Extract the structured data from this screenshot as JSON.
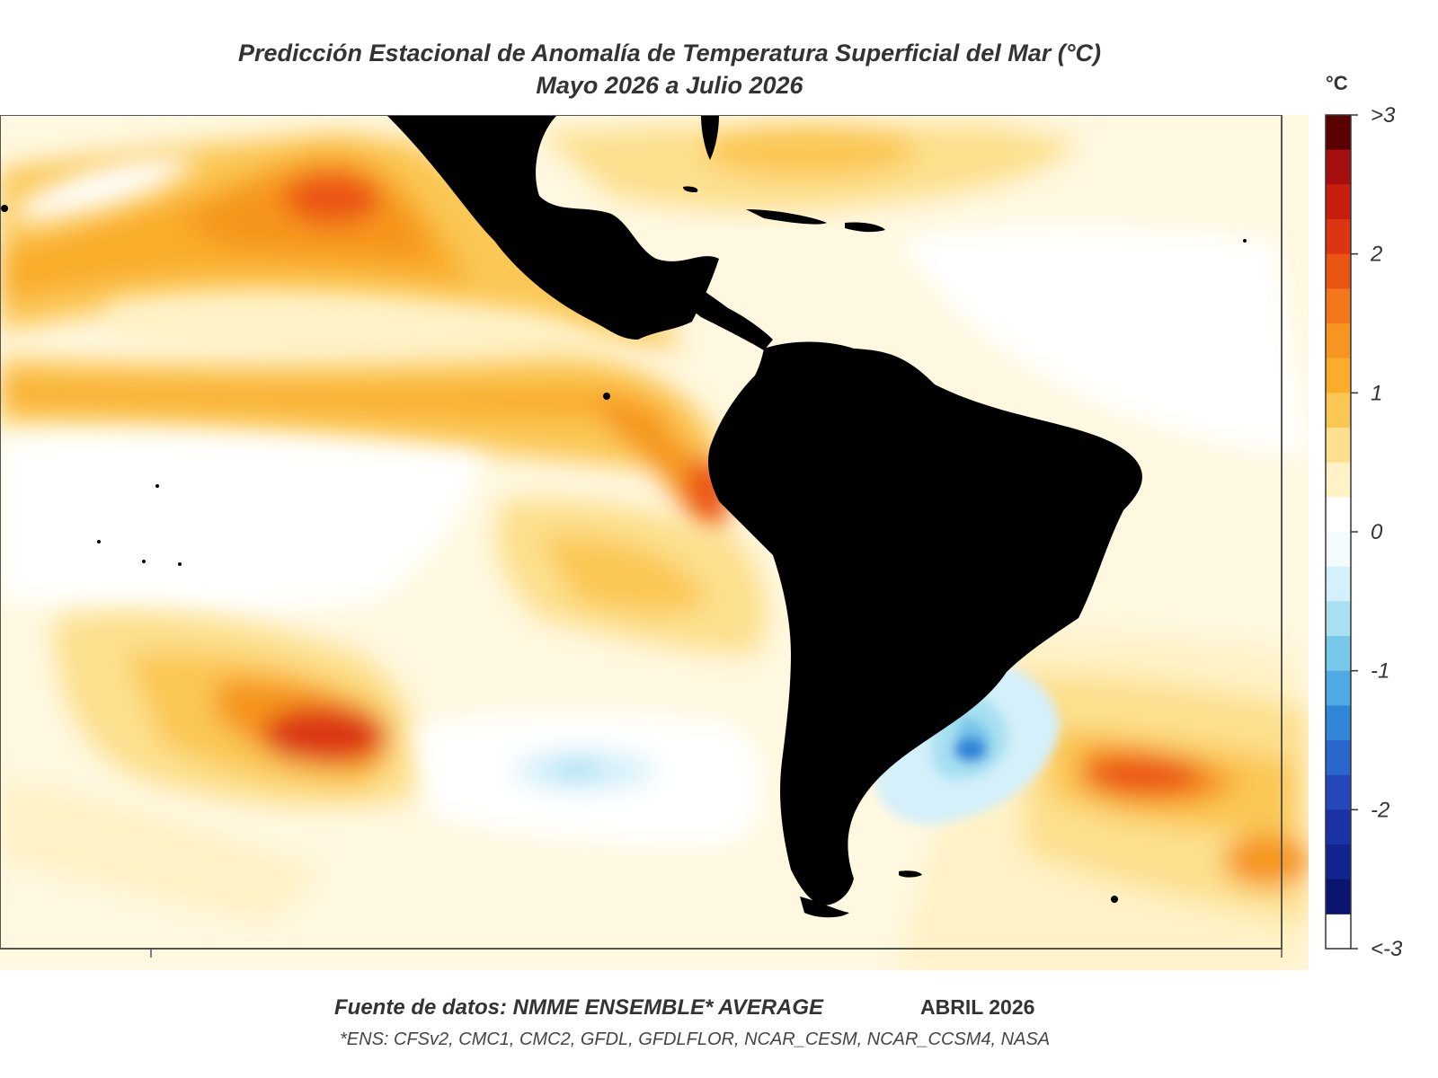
{
  "title": {
    "line1": "Predicción Estacional de Anomalía de Temperatura Superficial del Mar (°C)",
    "line2": "Mayo 2026 a Julio 2026"
  },
  "colorbar": {
    "unit": "°C",
    "ticks": [
      {
        "value": 3,
        "label": ">3"
      },
      {
        "value": 2,
        "label": "2"
      },
      {
        "value": 1,
        "label": "1"
      },
      {
        "value": 0,
        "label": "0"
      },
      {
        "value": -1,
        "label": "-1"
      },
      {
        "value": -2,
        "label": "-2"
      },
      {
        "value": -3,
        "label": "<-3"
      }
    ],
    "levels": [
      {
        "low": 2.75,
        "color": "#5a0000"
      },
      {
        "low": 2.5,
        "color": "#a50f0f"
      },
      {
        "low": 2.25,
        "color": "#c81e10"
      },
      {
        "low": 2.0,
        "color": "#dc3512"
      },
      {
        "low": 1.75,
        "color": "#eb5514"
      },
      {
        "low": 1.5,
        "color": "#f2771a"
      },
      {
        "low": 1.25,
        "color": "#f6951f"
      },
      {
        "low": 1.0,
        "color": "#f9ad2a"
      },
      {
        "low": 0.75,
        "color": "#fbc754"
      },
      {
        "low": 0.5,
        "color": "#fde08e"
      },
      {
        "low": 0.25,
        "color": "#fff2c6"
      },
      {
        "low": 0.0,
        "color": "#ffffff"
      },
      {
        "low": -0.25,
        "color": "#f4fbff"
      },
      {
        "low": -0.5,
        "color": "#d4f0fa"
      },
      {
        "low": -0.75,
        "color": "#a8e0f2"
      },
      {
        "low": -1.0,
        "color": "#78c8ea"
      },
      {
        "low": -1.25,
        "color": "#4fa9e2"
      },
      {
        "low": -1.5,
        "color": "#3286d8"
      },
      {
        "low": -1.75,
        "color": "#2a66cc"
      },
      {
        "low": -2.0,
        "color": "#2448bb"
      },
      {
        "low": -2.25,
        "color": "#1a32a6"
      },
      {
        "low": -2.5,
        "color": "#122490"
      },
      {
        "low": -2.75,
        "color": "#0a1570"
      }
    ]
  },
  "map": {
    "land_color": "#000000",
    "background_color": "#fff8e0",
    "anomaly_features": [
      {
        "name": "North Pacific warm band",
        "value": 1.2
      },
      {
        "name": "Baja California warm core",
        "value": 1.8
      },
      {
        "name": "Equatorial Pacific warm tongue",
        "value": 1.3
      },
      {
        "name": "Peru coast warm core",
        "value": 2.0
      },
      {
        "name": "South Pacific warm patch",
        "value": 1.5
      },
      {
        "name": "South Pacific warm core",
        "value": 2.3
      },
      {
        "name": "Argentine shelf cold anomaly",
        "value": -1.4
      },
      {
        "name": "Subtropical Pacific cold patch",
        "value": -0.6
      },
      {
        "name": "South Atlantic warm patch",
        "value": 1.7
      }
    ]
  },
  "footer": {
    "source": "Fuente de datos: NMME ENSEMBLE* AVERAGE",
    "date": "ABRIL 2026",
    "ensemble": "*ENS: CFSv2, CMC1, CMC2, GFDL, GFDLFLOR, NCAR_CESM, NCAR_CCSM4, NASA"
  }
}
